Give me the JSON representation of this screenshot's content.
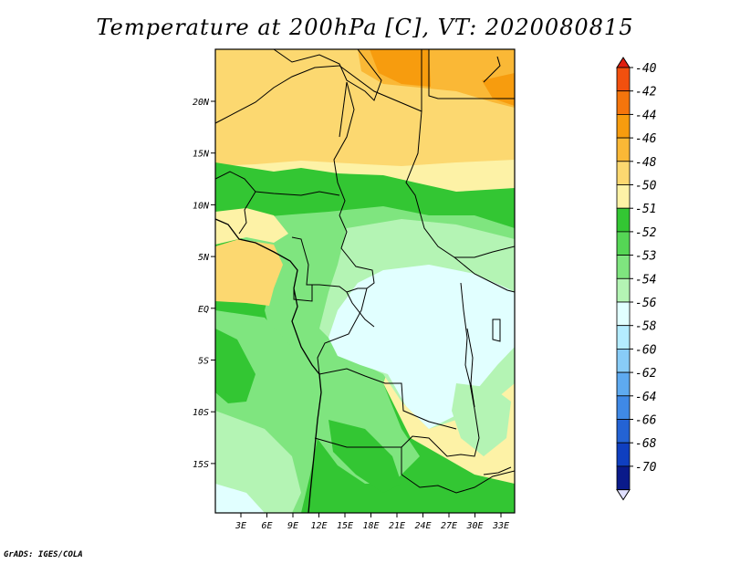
{
  "map": {
    "title": "Temperature at 200hPa [C], VT: 2020080815",
    "footer": "GrADS: IGES/COLA",
    "x_ticks": [
      "3E",
      "6E",
      "9E",
      "12E",
      "15E",
      "18E",
      "21E",
      "24E",
      "27E",
      "30E",
      "33E"
    ],
    "y_ticks": [
      "20N",
      "15N",
      "10N",
      "5N",
      "EQ",
      "5S",
      "10S",
      "15S"
    ],
    "legend": {
      "labels": [
        "-40",
        "-42",
        "-44",
        "-46",
        "-48",
        "-50",
        "-51",
        "-52",
        "-53",
        "-54",
        "-56",
        "-58",
        "-60",
        "-62",
        "-64",
        "-66",
        "-68",
        "-70"
      ],
      "colors": [
        "#e01e0e",
        "#f2500e",
        "#f5750c",
        "#f79c0e",
        "#fab836",
        "#fcd870",
        "#fdf2a6",
        "#33c633",
        "#55d655",
        "#7fe57f",
        "#b4f4b4",
        "#e1ffff",
        "#b4ecff",
        "#88ccf7",
        "#5eaaf0",
        "#3f89e6",
        "#2463d4",
        "#0f3fc0",
        "#0a1a8a",
        "#e0e0ff"
      ]
    },
    "colors": {
      "c_m51": "#fdf2a6",
      "c_m50": "#fcd870",
      "c_m48": "#fab836",
      "c_m46": "#f79c0e",
      "c_m52": "#33c633",
      "c_m53": "#7fe57f",
      "c_m54": "#b4f4b4",
      "c_m56": "#e1ffff"
    }
  }
}
